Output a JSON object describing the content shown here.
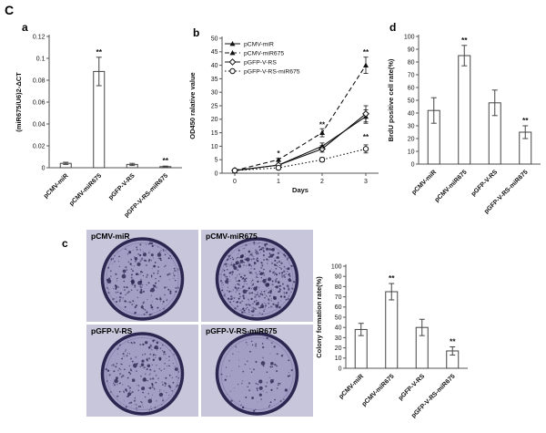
{
  "figure": {
    "label": "C",
    "panel_a": "a",
    "panel_b": "b",
    "panel_c": "c",
    "panel_d": "d"
  },
  "categories": [
    "pCMV-miR",
    "pCMV-miR675",
    "pGFP-V-RS",
    "pGFP-V-RS-miR675"
  ],
  "chart_data": [
    {
      "id": "a",
      "type": "bar",
      "ylabel": "(miR675/U6)2-ΔCT",
      "categories": [
        "pCMV-miR",
        "pCMV-miR675",
        "pGFP-V-RS",
        "pGFP-V-RS-miR675"
      ],
      "values": [
        0.004,
        0.088,
        0.003,
        0.001
      ],
      "errors": [
        0.001,
        0.013,
        0.001,
        0.0005
      ],
      "significance": [
        "",
        "**",
        "",
        "**"
      ],
      "ylim": [
        0,
        0.12
      ],
      "ytick_step": 0.02
    },
    {
      "id": "b",
      "type": "line",
      "ylabel": "OD450 ralative value",
      "xlabel": "Days",
      "x": [
        0,
        1,
        2,
        3
      ],
      "ylim": [
        0,
        50
      ],
      "ytick_step": 5,
      "legend_position": "top-left",
      "series": [
        {
          "name": "pCMV-miR",
          "values": [
            1,
            3,
            10,
            21
          ],
          "errors": [
            0,
            0.3,
            1.2,
            2.5
          ],
          "line": "solid",
          "marker": "triangle-filled"
        },
        {
          "name": "pCMV-miR675",
          "values": [
            1,
            5,
            15,
            40
          ],
          "errors": [
            0,
            0.5,
            1.5,
            3
          ],
          "line": "dashed",
          "marker": "triangle-filled"
        },
        {
          "name": "pGFP-V-RS",
          "values": [
            1,
            3,
            9,
            22
          ],
          "errors": [
            0,
            0.4,
            1.2,
            3
          ],
          "line": "solid",
          "marker": "diamond-open"
        },
        {
          "name": "pGFP-V-RS-miR675",
          "values": [
            1,
            2,
            5,
            9
          ],
          "errors": [
            0,
            0.3,
            0.8,
            1.5
          ],
          "line": "dotted",
          "marker": "circle-open"
        }
      ],
      "annotations": [
        {
          "x": 1,
          "y": 6.5,
          "text": "*"
        },
        {
          "x": 2,
          "y": 17,
          "text": "**"
        },
        {
          "x": 2,
          "y": 8,
          "text": "**"
        },
        {
          "x": 3,
          "y": 44,
          "text": "**"
        },
        {
          "x": 3,
          "y": 12.5,
          "text": "**"
        }
      ]
    },
    {
      "id": "d",
      "type": "bar",
      "ylabel": "BrdU positive cell rate(%)",
      "categories": [
        "pCMV-miR",
        "pCMV-miR675",
        "pGFP-V-RS",
        "pGFP-V-RS-miR675"
      ],
      "values": [
        42,
        85,
        48,
        25
      ],
      "errors": [
        10,
        8,
        10,
        5
      ],
      "significance": [
        "",
        "**",
        "",
        "**"
      ],
      "ylim": [
        0,
        100
      ],
      "ytick_step": 10
    },
    {
      "id": "colony",
      "type": "bar",
      "ylabel": "Colony formation rate(%)",
      "categories": [
        "pCMV-miR",
        "pCMV-miR675",
        "pGFP-V-RS",
        "pGFP-V-RS-miR675"
      ],
      "values": [
        38,
        75,
        40,
        17
      ],
      "errors": [
        6,
        8,
        8,
        4
      ],
      "significance": [
        "",
        "**",
        "",
        "**"
      ],
      "ylim": [
        0,
        100
      ],
      "ytick_step": 10
    }
  ],
  "dishes": [
    {
      "label": "pCMV-miR",
      "density": 230
    },
    {
      "label": "pCMV-miR675",
      "density": 430
    },
    {
      "label": "pGFP-V-RS",
      "density": 210
    },
    {
      "label": "pGFP-V-RS-miR675",
      "density": 90
    }
  ],
  "colors": {
    "bar_fill": "#ffffff",
    "axis": "#555555",
    "line": "#111111",
    "dish_ring": "#2c2750",
    "dish_fill": "#a39fc4",
    "dish_dot": "#322c58"
  }
}
